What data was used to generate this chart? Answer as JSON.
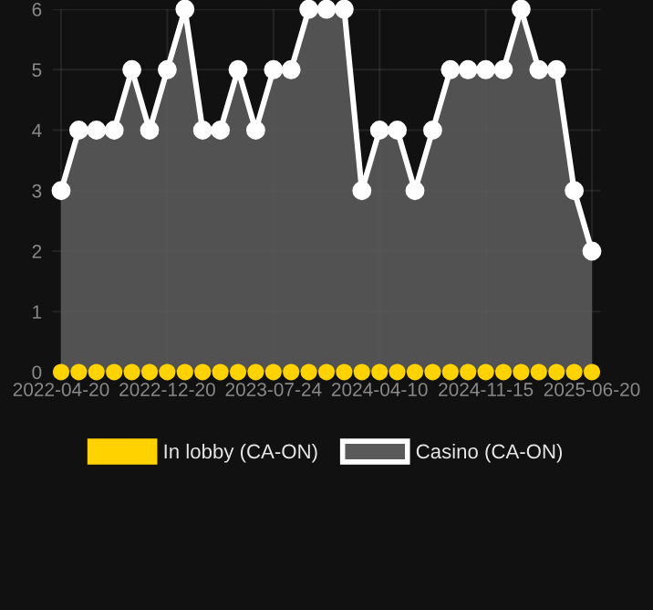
{
  "chart_data": {
    "type": "area",
    "categories": [
      "2022-04-20",
      null,
      null,
      null,
      null,
      null,
      "2022-12-20",
      null,
      null,
      null,
      null,
      null,
      "2023-07-24",
      null,
      null,
      null,
      null,
      null,
      "2024-04-10",
      null,
      null,
      null,
      null,
      null,
      "2024-11-15",
      null,
      null,
      null,
      null,
      null,
      "2025-06-20"
    ],
    "series": [
      {
        "name": "In lobby (CA-ON)",
        "type": "scatter",
        "color": "#ffd200",
        "values": [
          0,
          0,
          0,
          0,
          0,
          0,
          0,
          0,
          0,
          0,
          0,
          0,
          0,
          0,
          0,
          0,
          0,
          0,
          0,
          0,
          0,
          0,
          0,
          0,
          0,
          0,
          0,
          0,
          0,
          0,
          0
        ]
      },
      {
        "name": "Casino (CA-ON)",
        "color": "#ffffff",
        "values": [
          3,
          4,
          4,
          4,
          5,
          4,
          5,
          6,
          4,
          4,
          5,
          4,
          5,
          5,
          6,
          6,
          6,
          3,
          4,
          4,
          3,
          4,
          5,
          5,
          5,
          5,
          6,
          5,
          5,
          3,
          2
        ]
      }
    ],
    "ylim": [
      0,
      6
    ],
    "yticks": [
      0,
      1,
      2,
      3,
      4,
      5,
      6
    ],
    "grid": true,
    "legend": "bottom",
    "marker": "circle",
    "line_style": "solid"
  }
}
